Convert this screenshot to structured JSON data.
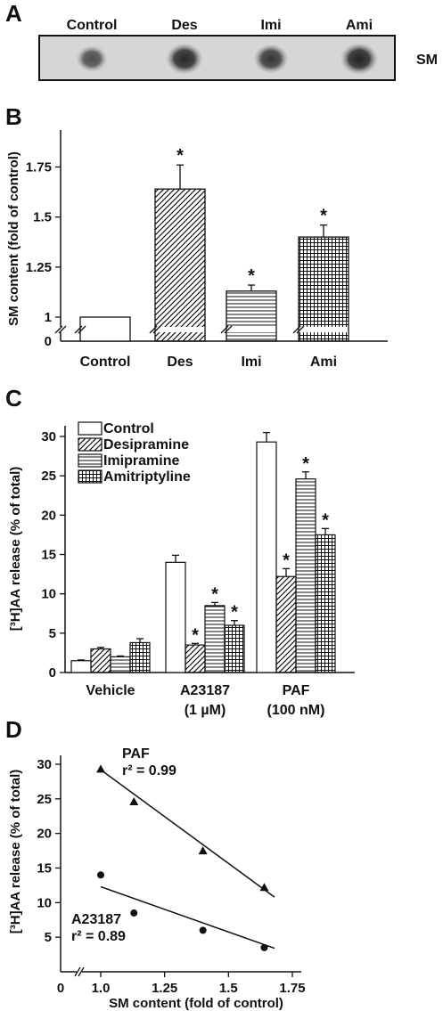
{
  "panels": {
    "a": {
      "letter": "A",
      "lanes": [
        "Control",
        "Des",
        "Imi",
        "Ami"
      ],
      "spot_intensity": [
        0.45,
        0.85,
        0.7,
        0.9
      ],
      "row_label": "SM"
    },
    "b": {
      "letter": "B"
    },
    "c": {
      "letter": "C"
    },
    "d": {
      "letter": "D"
    }
  },
  "chart_data": [
    {
      "id": "B",
      "type": "bar",
      "categories": [
        "Control",
        "Des",
        "Imi",
        "Ami"
      ],
      "values": [
        1.0,
        1.64,
        1.13,
        1.4
      ],
      "errors": [
        0.0,
        0.12,
        0.03,
        0.06
      ],
      "significant": [
        false,
        true,
        true,
        true
      ],
      "patterns": [
        "none",
        "diagonal",
        "horizontal",
        "grid"
      ],
      "ylabel": "SM content (fold of control)",
      "yticks": [
        1,
        1.25,
        1.5,
        1.75
      ],
      "ytick_labels": [
        "1",
        "1.25",
        "1.5",
        "1.75"
      ],
      "axis_break": true,
      "ylim": [
        0.9,
        1.9
      ],
      "star": "*"
    },
    {
      "id": "C",
      "type": "bar",
      "categories": [
        "Vehicle",
        "A23187",
        "PAF"
      ],
      "category_sublabels": [
        "",
        "(1 µM)",
        "(100 nM)"
      ],
      "series": [
        {
          "name": "Control",
          "pattern": "none",
          "values": [
            1.5,
            14.0,
            29.3
          ],
          "errors": [
            0.1,
            0.9,
            1.2
          ],
          "significant": [
            false,
            false,
            false
          ]
        },
        {
          "name": "Desipramine",
          "pattern": "diagonal",
          "values": [
            3.0,
            3.5,
            12.2
          ],
          "errors": [
            0.2,
            0.2,
            1.0
          ],
          "significant": [
            false,
            true,
            true
          ]
        },
        {
          "name": "Imipramine",
          "pattern": "horizontal",
          "values": [
            2.0,
            8.5,
            24.6
          ],
          "errors": [
            0.1,
            0.4,
            0.9
          ],
          "significant": [
            false,
            true,
            true
          ]
        },
        {
          "name": "Amitriptyline",
          "pattern": "grid",
          "values": [
            3.8,
            6.0,
            17.5
          ],
          "errors": [
            0.5,
            0.6,
            0.8
          ],
          "significant": [
            false,
            true,
            true
          ]
        }
      ],
      "ylabel": "[³H]AA release (% of total)",
      "ylim": [
        0,
        32
      ],
      "yticks": [
        0,
        5,
        10,
        15,
        20,
        25,
        30
      ],
      "legend_position": "top-left",
      "star": "*"
    },
    {
      "id": "D",
      "type": "scatter",
      "xlabel": "SM content (fold of control)",
      "ylabel": "[³H]AA release (% of total)",
      "xlim": [
        0.85,
        1.75
      ],
      "ylim": [
        0,
        32
      ],
      "xticks": [
        1.0,
        1.25,
        1.5,
        1.75
      ],
      "xtick_labels": [
        "1.0",
        "1.25",
        "1.5",
        "1.75"
      ],
      "x_zero_label": "0",
      "yticks": [
        5,
        10,
        15,
        20,
        25,
        30
      ],
      "axis_break": true,
      "series": [
        {
          "name": "PAF",
          "annotation": "r² = 0.99",
          "marker": "triangle",
          "x": [
            1.0,
            1.13,
            1.4,
            1.64
          ],
          "y": [
            29.3,
            24.6,
            17.5,
            12.2
          ],
          "fit": {
            "x": [
              1.0,
              1.68
            ],
            "y": [
              29.2,
              10.8
            ]
          }
        },
        {
          "name": "A23187",
          "annotation": "r² = 0.89",
          "marker": "circle",
          "x": [
            1.0,
            1.13,
            1.4,
            1.64
          ],
          "y": [
            14.0,
            8.5,
            6.0,
            3.5
          ],
          "fit": {
            "x": [
              1.0,
              1.68
            ],
            "y": [
              12.3,
              3.4
            ]
          }
        }
      ]
    }
  ]
}
